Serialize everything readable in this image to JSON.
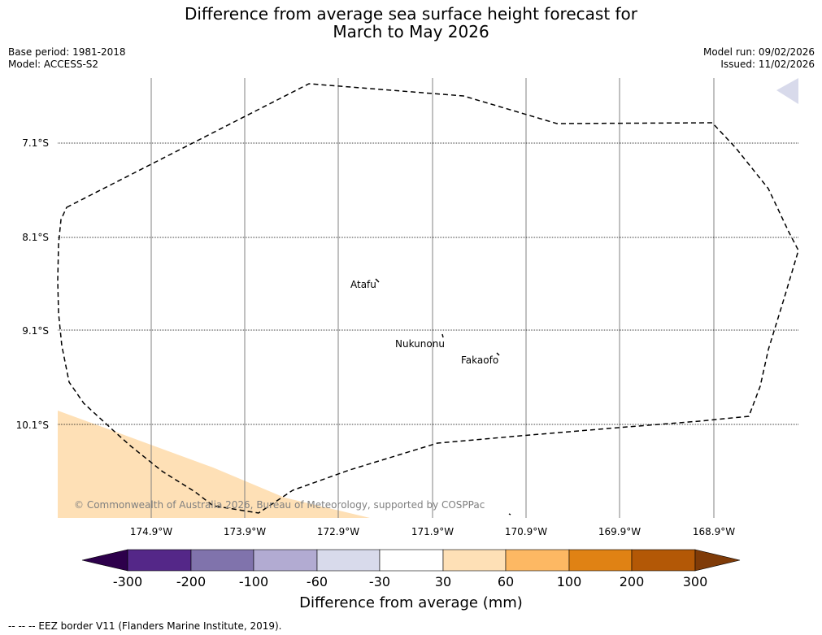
{
  "title": {
    "line1": "Difference from average sea surface height forecast for",
    "line2": "March to May 2026"
  },
  "meta": {
    "base_period": "Base period: 1981-2018",
    "model": "Model: ACCESS-S2",
    "model_run": "Model run: 09/02/2026",
    "issued": "Issued: 11/02/2026"
  },
  "map": {
    "lat_labels": [
      "7.1°S",
      "8.1°S",
      "9.1°S",
      "10.1°S"
    ],
    "lon_labels": [
      "174.9°W",
      "173.9°W",
      "172.9°W",
      "171.9°W",
      "170.9°W",
      "169.9°W",
      "168.9°W"
    ],
    "places": [
      "Atafu",
      "Nukunonu",
      "Fakaofo"
    ],
    "copyright": "© Commonwealth of Australia 2026, Bureau of Meteorology, supported by COSPPac",
    "anomaly_fill_color": "#fee0b6",
    "eez_color": "#000000"
  },
  "colorbar": {
    "ticks": [
      "-300",
      "-200",
      "-100",
      "-60",
      "-30",
      "30",
      "60",
      "100",
      "200",
      "300"
    ],
    "colors": [
      "#2d004b",
      "#542788",
      "#8073ac",
      "#b2abd2",
      "#d8daeb",
      "#ffffff",
      "#fee0b6",
      "#fdb863",
      "#e08214",
      "#b35806",
      "#7f3b08"
    ],
    "label": "Difference from average (mm)"
  },
  "footer": "--  --  -- EEZ border V11 (Flanders Marine Institute, 2019)."
}
